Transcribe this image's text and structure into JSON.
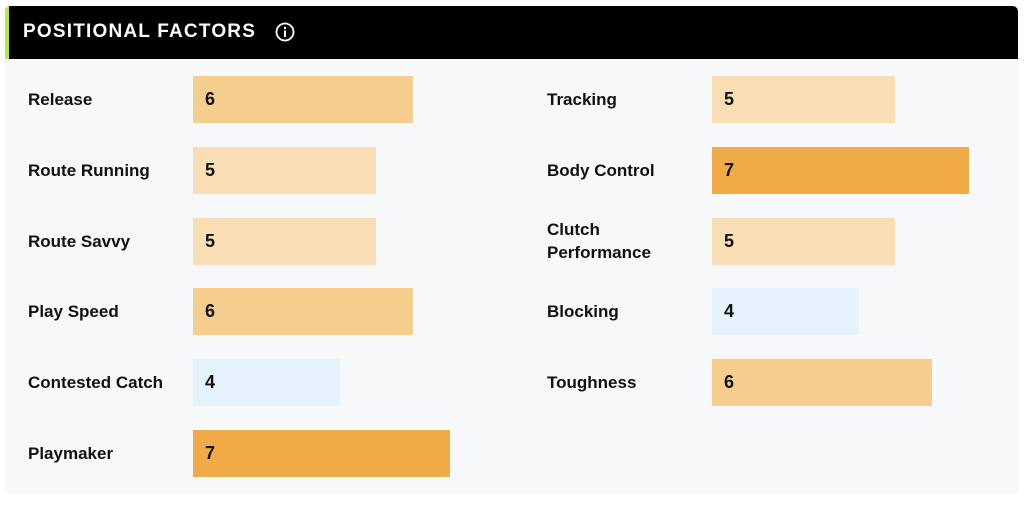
{
  "header": {
    "title": "POSITIONAL FACTORS",
    "info_icon": "info-circle-icon"
  },
  "colors": {
    "header_bg": "#000000",
    "accent": "#b6e843",
    "card_bg": "#f7f8fa",
    "score_4": "#e4f2fc",
    "score_5": "#f9deb5",
    "score_6": "#f5cd8c",
    "score_7": "#f0ab48"
  },
  "chart_data": {
    "type": "bar",
    "title": "POSITIONAL FACTORS",
    "series": [
      {
        "values": [
          6,
          5,
          5,
          6,
          4,
          7
        ]
      },
      {
        "values": [
          5,
          7,
          5,
          4,
          6
        ]
      }
    ],
    "columns": [
      {
        "categories": [
          "Release",
          "Route Running",
          "Route Savvy",
          "Play Speed",
          "Contested Catch",
          "Playmaker"
        ],
        "values": [
          6,
          5,
          5,
          6,
          4,
          7
        ]
      },
      {
        "categories": [
          "Tracking",
          "Body Control",
          "Clutch Performance",
          "Blocking",
          "Toughness"
        ],
        "values": [
          5,
          7,
          5,
          4,
          6
        ]
      }
    ]
  }
}
